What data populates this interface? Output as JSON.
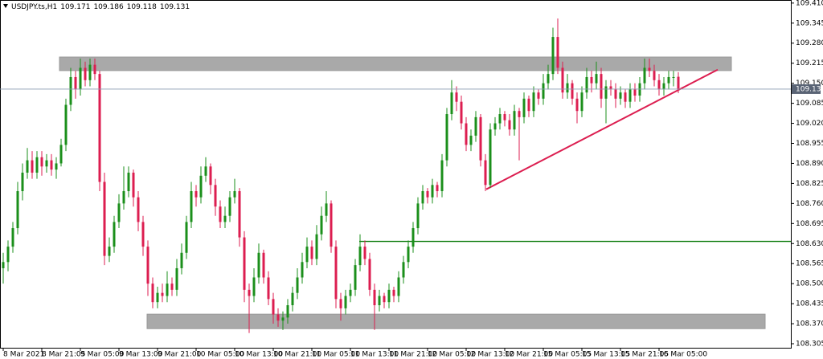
{
  "chart_data": {
    "type": "candlestick",
    "symbol": "USDJPY.ts,H1",
    "up_color": "#1b8f1b",
    "down_color": "#dc1e50",
    "ylim": [
      108.292,
      109.42
    ],
    "yticks": [
      108.305,
      {
        "value": 108.37,
        "label": "108.370"
      },
      108.435,
      {
        "value": 108.5,
        "label": "108.500"
      },
      108.565,
      {
        "value": 108.63,
        "label": "108.630"
      },
      108.695,
      {
        "value": 108.76,
        "label": "108.760"
      },
      108.825,
      {
        "value": 108.89,
        "label": "108.890"
      },
      108.955,
      {
        "value": 109.02,
        "label": "109.020"
      },
      109.085,
      {
        "value": 109.15,
        "label": "109.150"
      },
      109.215,
      {
        "value": 109.28,
        "label": "109.280"
      },
      109.345,
      {
        "value": 109.41,
        "label": "109.410"
      }
    ],
    "xlabels": [
      "8 Mar 2021",
      "8 Mar 21:05",
      "9 Mar 05:00",
      "9 Mar 13:00",
      "9 Mar 21:00",
      "10 Mar 05:00",
      "10 Mar 13:00",
      "10 Mar 21:00",
      "11 Mar 05:00",
      "11 Mar 13:00",
      "11 Mar 21:00",
      "12 Mar 05:00",
      "12 Mar 13:00",
      "12 Mar 21:00",
      "15 Mar 05:05",
      "15 Mar 13:05",
      "15 Mar 21:05",
      "16 Mar 05:00"
    ],
    "zones": [
      {
        "top": 109.235,
        "bottom": 109.191
      },
      {
        "top": 108.401,
        "bottom": 108.354
      }
    ],
    "trendline": [
      108.806,
      109.194
    ],
    "level": 108.637,
    "candles": [
      [
        108.55,
        108.6,
        108.5,
        108.57
      ],
      [
        108.57,
        108.64,
        108.54,
        108.62
      ],
      [
        108.62,
        108.7,
        108.6,
        108.68
      ],
      [
        108.68,
        108.83,
        108.66,
        108.8
      ],
      [
        108.8,
        108.89,
        108.77,
        108.86
      ],
      [
        108.86,
        108.94,
        108.84,
        108.9
      ],
      [
        108.9,
        108.93,
        108.84,
        108.86
      ],
      [
        108.86,
        108.93,
        108.84,
        108.91
      ],
      [
        108.91,
        108.93,
        108.85,
        108.88
      ],
      [
        108.88,
        108.92,
        108.86,
        108.9
      ],
      [
        108.9,
        108.92,
        108.85,
        108.87
      ],
      [
        108.87,
        108.91,
        108.84,
        108.89
      ],
      [
        108.89,
        108.97,
        108.88,
        108.95
      ],
      [
        108.95,
        109.1,
        108.93,
        109.08
      ],
      [
        109.08,
        109.2,
        109.06,
        109.17
      ],
      [
        109.17,
        109.19,
        109.1,
        109.13
      ],
      [
        109.13,
        109.23,
        109.11,
        109.2
      ],
      [
        109.2,
        109.22,
        109.14,
        109.16
      ],
      [
        109.16,
        109.23,
        109.14,
        109.21
      ],
      [
        109.21,
        109.23,
        109.16,
        109.18
      ],
      [
        109.18,
        109.19,
        108.8,
        108.83
      ],
      [
        108.83,
        108.86,
        108.56,
        108.59
      ],
      [
        108.59,
        108.65,
        108.57,
        108.62
      ],
      [
        108.62,
        108.72,
        108.6,
        108.7
      ],
      [
        108.7,
        108.79,
        108.68,
        108.76
      ],
      [
        108.76,
        108.88,
        108.74,
        108.8
      ],
      [
        108.8,
        108.88,
        108.78,
        108.86
      ],
      [
        108.86,
        108.87,
        108.75,
        108.78
      ],
      [
        108.78,
        108.8,
        108.67,
        108.7
      ],
      [
        108.7,
        108.72,
        108.59,
        108.62
      ],
      [
        108.62,
        108.64,
        108.46,
        108.5
      ],
      [
        108.5,
        108.52,
        108.42,
        108.44
      ],
      [
        108.44,
        108.49,
        108.42,
        108.47
      ],
      [
        108.47,
        108.5,
        108.44,
        108.46
      ],
      [
        108.46,
        108.54,
        108.44,
        108.5
      ],
      [
        108.5,
        108.52,
        108.46,
        108.48
      ],
      [
        108.48,
        108.58,
        108.46,
        108.55
      ],
      [
        108.55,
        108.63,
        108.53,
        108.6
      ],
      [
        108.6,
        108.72,
        108.58,
        108.7
      ],
      [
        108.7,
        108.83,
        108.68,
        108.8
      ],
      [
        108.8,
        108.82,
        108.75,
        108.78
      ],
      [
        108.78,
        108.88,
        108.76,
        108.85
      ],
      [
        108.85,
        108.91,
        108.83,
        108.88
      ],
      [
        108.88,
        108.89,
        108.79,
        108.82
      ],
      [
        108.82,
        108.84,
        108.72,
        108.75
      ],
      [
        108.75,
        108.77,
        108.68,
        108.7
      ],
      [
        108.7,
        108.75,
        108.68,
        108.72
      ],
      [
        108.72,
        108.8,
        108.7,
        108.78
      ],
      [
        108.78,
        108.84,
        108.76,
        108.8
      ],
      [
        108.8,
        108.81,
        108.62,
        108.65
      ],
      [
        108.65,
        108.67,
        108.44,
        108.48
      ],
      [
        108.48,
        108.5,
        108.34,
        108.46
      ],
      [
        108.46,
        108.55,
        108.44,
        108.52
      ],
      [
        108.52,
        108.63,
        108.5,
        108.6
      ],
      [
        108.6,
        108.61,
        108.5,
        108.52
      ],
      [
        108.52,
        108.54,
        108.43,
        108.45
      ],
      [
        108.45,
        108.47,
        108.37,
        108.4
      ],
      [
        108.4,
        108.42,
        108.36,
        108.38
      ],
      [
        108.38,
        108.41,
        108.35,
        108.39
      ],
      [
        108.39,
        108.45,
        108.37,
        108.43
      ],
      [
        108.43,
        108.49,
        108.41,
        108.47
      ],
      [
        108.47,
        108.55,
        108.45,
        108.52
      ],
      [
        108.52,
        108.6,
        108.5,
        108.57
      ],
      [
        108.57,
        108.65,
        108.55,
        108.62
      ],
      [
        108.62,
        108.64,
        108.56,
        108.58
      ],
      [
        108.58,
        108.69,
        108.56,
        108.66
      ],
      [
        108.66,
        108.75,
        108.64,
        108.72
      ],
      [
        108.72,
        108.8,
        108.7,
        108.76
      ],
      [
        108.76,
        108.77,
        108.6,
        108.62
      ],
      [
        108.62,
        108.64,
        108.42,
        108.45
      ],
      [
        108.45,
        108.47,
        108.38,
        108.42
      ],
      [
        108.42,
        108.48,
        108.4,
        108.46
      ],
      [
        108.46,
        108.5,
        108.44,
        108.48
      ],
      [
        108.48,
        108.58,
        108.46,
        108.56
      ],
      [
        108.56,
        108.66,
        108.54,
        108.62
      ],
      [
        108.62,
        108.64,
        108.56,
        108.58
      ],
      [
        108.58,
        108.6,
        108.46,
        108.48
      ],
      [
        108.48,
        108.5,
        108.35,
        108.43
      ],
      [
        108.43,
        108.48,
        108.41,
        108.46
      ],
      [
        108.46,
        108.47,
        108.42,
        108.44
      ],
      [
        108.44,
        108.5,
        108.42,
        108.48
      ],
      [
        108.48,
        108.49,
        108.44,
        108.46
      ],
      [
        108.46,
        108.54,
        108.44,
        108.52
      ],
      [
        108.52,
        108.59,
        108.5,
        108.57
      ],
      [
        108.57,
        108.64,
        108.55,
        108.62
      ],
      [
        108.62,
        108.7,
        108.6,
        108.68
      ],
      [
        108.68,
        108.78,
        108.66,
        108.76
      ],
      [
        108.76,
        108.82,
        108.74,
        108.8
      ],
      [
        108.8,
        108.81,
        108.76,
        108.78
      ],
      [
        108.78,
        108.84,
        108.76,
        108.82
      ],
      [
        108.82,
        108.83,
        108.78,
        108.8
      ],
      [
        108.8,
        108.92,
        108.78,
        108.9
      ],
      [
        108.9,
        109.07,
        108.88,
        109.05
      ],
      [
        109.05,
        109.16,
        109.03,
        109.12
      ],
      [
        109.12,
        109.14,
        109.06,
        109.09
      ],
      [
        109.09,
        109.11,
        109.0,
        109.02
      ],
      [
        109.02,
        109.04,
        108.93,
        108.95
      ],
      [
        108.95,
        109.0,
        108.93,
        108.98
      ],
      [
        108.98,
        109.06,
        108.96,
        109.04
      ],
      [
        109.04,
        109.05,
        108.88,
        108.9
      ],
      [
        108.9,
        108.92,
        108.8,
        108.82
      ],
      [
        108.82,
        109.02,
        108.81,
        109.0
      ],
      [
        109.0,
        109.04,
        108.98,
        109.02
      ],
      [
        109.02,
        109.07,
        109.0,
        109.05
      ],
      [
        109.05,
        109.06,
        109.01,
        109.03
      ],
      [
        109.03,
        109.05,
        108.98,
        109.0
      ],
      [
        109.0,
        109.08,
        108.98,
        109.06
      ],
      [
        109.06,
        109.07,
        108.9,
        109.04
      ],
      [
        109.04,
        109.12,
        109.02,
        109.1
      ],
      [
        109.1,
        109.11,
        109.04,
        109.06
      ],
      [
        109.06,
        109.14,
        109.04,
        109.12
      ],
      [
        109.12,
        109.13,
        109.08,
        109.1
      ],
      [
        109.1,
        109.18,
        109.08,
        109.15
      ],
      [
        109.15,
        109.21,
        109.13,
        109.18
      ],
      [
        109.18,
        109.33,
        109.16,
        109.3
      ],
      [
        109.3,
        109.36,
        109.18,
        109.2
      ],
      [
        109.2,
        109.22,
        109.1,
        109.12
      ],
      [
        109.12,
        109.18,
        109.1,
        109.15
      ],
      [
        109.15,
        109.16,
        109.08,
        109.1
      ],
      [
        109.1,
        109.12,
        109.02,
        109.06
      ],
      [
        109.06,
        109.14,
        109.04,
        109.12
      ],
      [
        109.12,
        109.2,
        109.1,
        109.17
      ],
      [
        109.17,
        109.19,
        109.12,
        109.15
      ],
      [
        109.15,
        109.22,
        109.13,
        109.18
      ],
      [
        109.18,
        109.2,
        109.07,
        109.1
      ],
      [
        109.1,
        109.16,
        109.02,
        109.14
      ],
      [
        109.14,
        109.16,
        109.11,
        109.13
      ],
      [
        109.13,
        109.15,
        109.07,
        109.1
      ],
      [
        109.1,
        109.14,
        109.08,
        109.12
      ],
      [
        109.12,
        109.13,
        109.07,
        109.09
      ],
      [
        109.09,
        109.15,
        109.07,
        109.13
      ],
      [
        109.13,
        109.15,
        109.09,
        109.11
      ],
      [
        109.11,
        109.17,
        109.09,
        109.15
      ],
      [
        109.15,
        109.23,
        109.13,
        109.2
      ],
      [
        109.2,
        109.23,
        109.17,
        109.19
      ],
      [
        109.19,
        109.21,
        109.14,
        109.16
      ],
      [
        109.16,
        109.18,
        109.11,
        109.13
      ],
      [
        109.13,
        109.17,
        109.11,
        109.15
      ],
      [
        109.15,
        109.19,
        109.13,
        109.17
      ],
      [
        109.17,
        109.19,
        109.14,
        109.17
      ],
      [
        109.171,
        109.186,
        109.118,
        109.131
      ]
    ]
  }
}
